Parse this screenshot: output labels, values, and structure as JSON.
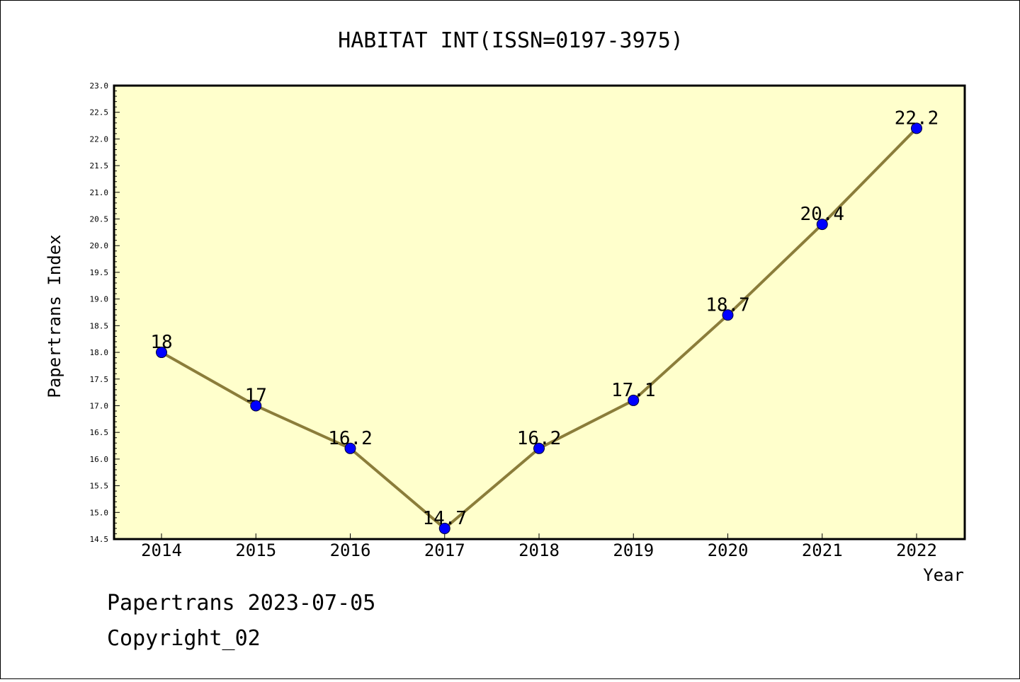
{
  "chart_data": {
    "type": "line",
    "title": "HABITAT INT(ISSN=0197-3975)",
    "xlabel": "Year",
    "ylabel": "Papertrans Index",
    "categories": [
      "2014",
      "2015",
      "2016",
      "2017",
      "2018",
      "2019",
      "2020",
      "2021",
      "2022"
    ],
    "series": [
      {
        "values": [
          18,
          17,
          16.2,
          14.7,
          16.2,
          17.1,
          18.7,
          20.4,
          22.2
        ],
        "data_labels": [
          "18",
          "17",
          "16.2",
          "14.7",
          "16.2",
          "17.1",
          "18.7",
          "20.4",
          "22.2"
        ]
      }
    ],
    "ylim": [
      14.5,
      23.0
    ],
    "ytick_step": 0.5,
    "grid": false,
    "colors": {
      "plot_background": "#ffffcc",
      "line": "#8b7d3a",
      "marker": "#0000ff"
    }
  },
  "footer": {
    "line1": "Papertrans 2023-07-05",
    "line2": "Copyright_02"
  }
}
